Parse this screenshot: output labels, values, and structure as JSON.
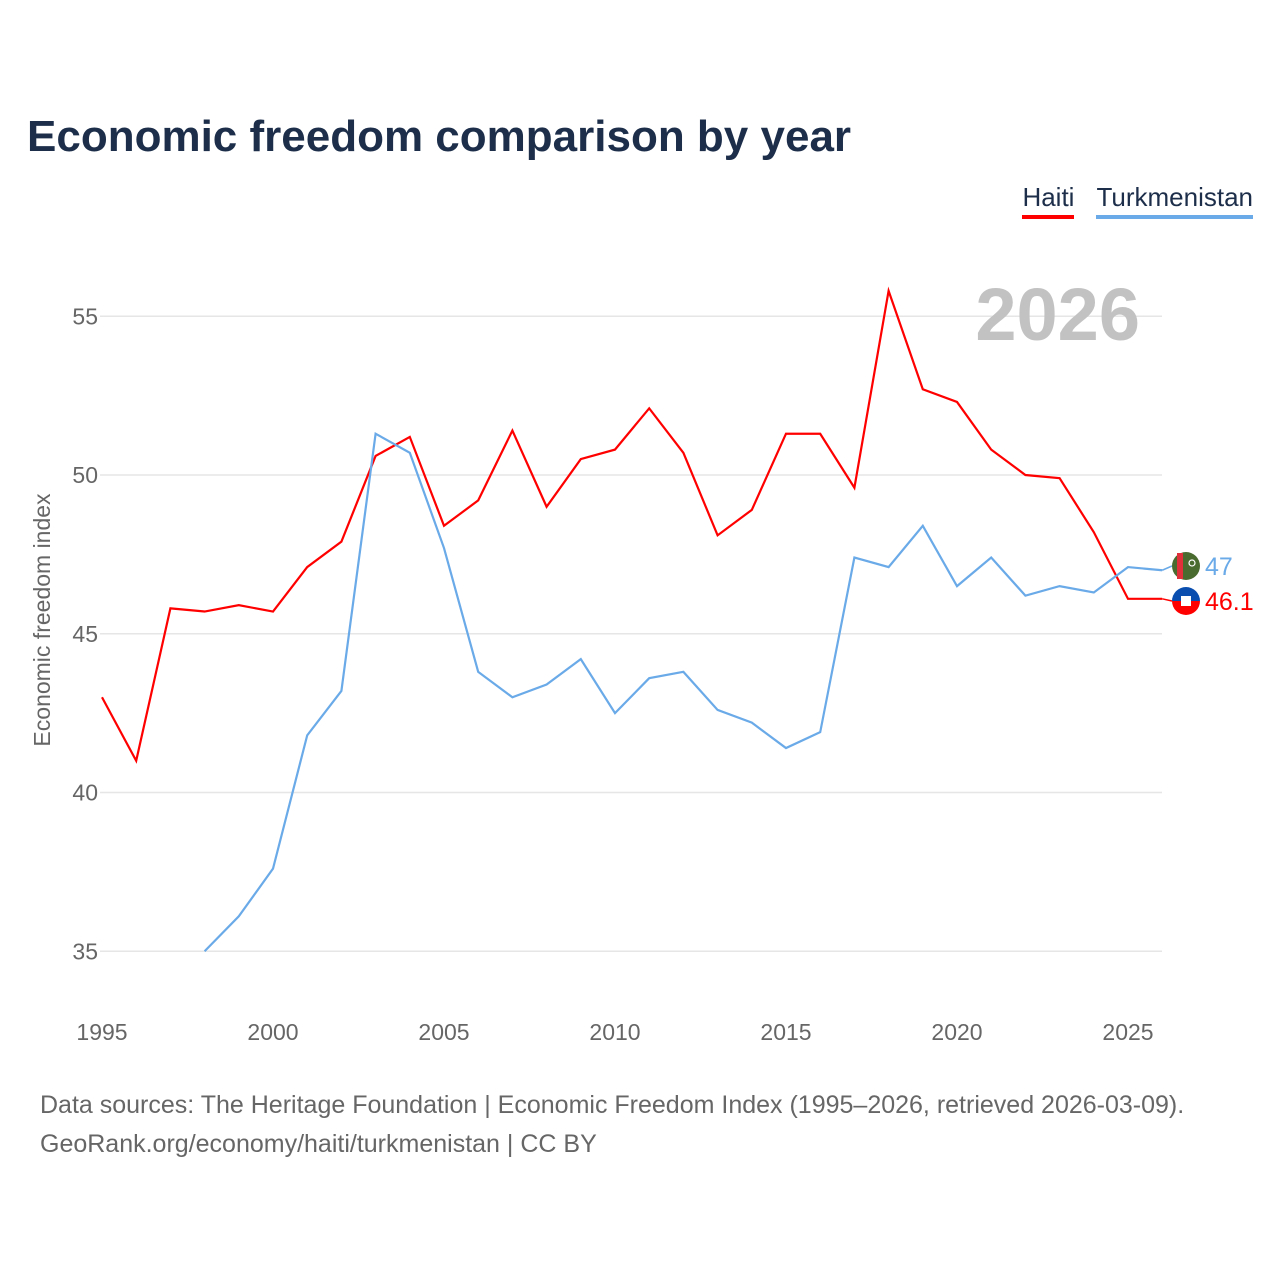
{
  "title": "Economic freedom comparison by year",
  "year_watermark": "2026",
  "footer": {
    "line1": "Data sources: The Heritage Foundation | Economic Freedom Index (1995–2026, retrieved 2026-03-09).",
    "line2": "GeoRank.org/economy/haiti/turkmenistan | CC BY"
  },
  "chart_data": {
    "type": "line",
    "title": "Economic freedom comparison by year",
    "xlabel": "",
    "ylabel": "Economic freedom index",
    "xlim": [
      1995,
      2026
    ],
    "ylim": [
      33.5,
      57
    ],
    "xticks": [
      1995,
      2000,
      2005,
      2010,
      2015,
      2020,
      2025
    ],
    "yticks": [
      35,
      40,
      45,
      50,
      55
    ],
    "grid": true,
    "legend_position": "top-right",
    "series": [
      {
        "name": "Haiti",
        "color": "#ff0000",
        "end_label": "46.1",
        "flag": "haiti-flag",
        "x": [
          1995,
          1996,
          1997,
          1998,
          1999,
          2000,
          2001,
          2002,
          2003,
          2004,
          2005,
          2006,
          2007,
          2008,
          2009,
          2010,
          2011,
          2012,
          2013,
          2014,
          2015,
          2016,
          2017,
          2018,
          2019,
          2020,
          2021,
          2022,
          2023,
          2024,
          2025,
          2026
        ],
        "y": [
          43.0,
          41.0,
          45.8,
          45.7,
          45.9,
          45.7,
          47.1,
          47.9,
          50.6,
          51.2,
          48.4,
          49.2,
          51.4,
          49.0,
          50.5,
          50.8,
          52.1,
          50.7,
          48.1,
          48.9,
          51.3,
          51.3,
          49.6,
          55.8,
          52.7,
          52.3,
          50.8,
          50.0,
          49.9,
          48.2,
          46.1,
          46.1
        ]
      },
      {
        "name": "Turkmenistan",
        "color": "#6aaae8",
        "end_label": "47",
        "flag": "turkmenistan-flag",
        "x": [
          1998,
          1999,
          2000,
          2001,
          2002,
          2003,
          2004,
          2005,
          2006,
          2007,
          2008,
          2009,
          2010,
          2011,
          2012,
          2013,
          2014,
          2015,
          2016,
          2017,
          2018,
          2019,
          2020,
          2021,
          2022,
          2023,
          2024,
          2025,
          2026
        ],
        "y": [
          35.0,
          36.1,
          37.6,
          41.8,
          43.2,
          51.3,
          50.7,
          47.7,
          43.8,
          43.0,
          43.4,
          44.2,
          42.5,
          43.6,
          43.8,
          42.6,
          42.2,
          41.4,
          41.9,
          47.4,
          47.1,
          48.4,
          46.5,
          47.4,
          46.2,
          46.5,
          46.3,
          47.1,
          47.0
        ]
      }
    ]
  }
}
